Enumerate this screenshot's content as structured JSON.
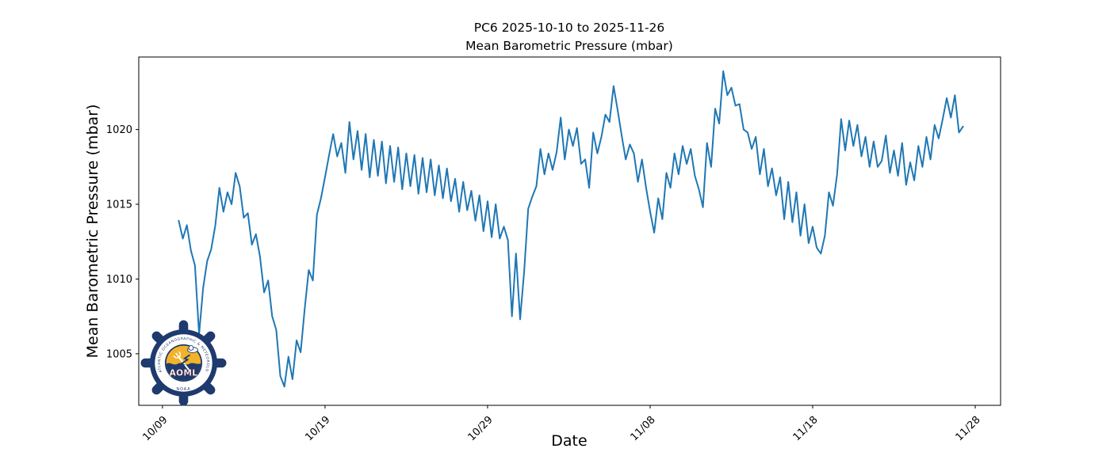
{
  "figure": {
    "title_line1": "PC6 2025-10-10 to 2025-11-26",
    "title_line2": "Mean Barometric Pressure (mbar)",
    "xlabel": "Date",
    "ylabel": "Mean Barometric Pressure (mbar)"
  },
  "chart_data": {
    "type": "line",
    "series_name": "Mean Barometric Pressure",
    "line_color": "#1f77b4",
    "title": "PC6 2025-10-10 to 2025-11-26 — Mean Barometric Pressure (mbar)",
    "xlabel": "Date",
    "ylabel": "Mean Barometric Pressure (mbar)",
    "grid": false,
    "x_start_date": "2025-10-10",
    "samples_per_day": 4,
    "x_tick_labels": [
      "10/09",
      "10/19",
      "10/29",
      "11/08",
      "11/18",
      "11/28"
    ],
    "x_tick_days": [
      -1,
      9,
      19,
      29,
      39,
      49
    ],
    "y_ticks": [
      1005,
      1010,
      1015,
      1020
    ],
    "xlim_days": [
      -2.46,
      50.56
    ],
    "ylim": [
      1001.55,
      1024.85
    ],
    "values": [
      1013.9,
      1012.7,
      1013.6,
      1011.9,
      1010.9,
      1006.3,
      1009.4,
      1011.2,
      1012.0,
      1013.6,
      1016.1,
      1014.5,
      1015.8,
      1015.0,
      1017.1,
      1016.2,
      1014.1,
      1014.4,
      1012.3,
      1013.0,
      1011.5,
      1009.1,
      1009.9,
      1007.5,
      1006.6,
      1003.5,
      1002.8,
      1004.8,
      1003.3,
      1005.9,
      1005.1,
      1008.0,
      1010.6,
      1009.9,
      1014.3,
      1015.4,
      1016.8,
      1018.3,
      1019.7,
      1018.2,
      1019.1,
      1017.1,
      1020.5,
      1018.0,
      1019.9,
      1017.3,
      1019.7,
      1016.8,
      1019.3,
      1016.9,
      1019.2,
      1016.4,
      1018.9,
      1016.5,
      1018.8,
      1016.0,
      1018.4,
      1016.2,
      1018.3,
      1015.7,
      1018.1,
      1015.8,
      1018.0,
      1015.6,
      1017.6,
      1015.4,
      1017.4,
      1015.2,
      1016.7,
      1014.5,
      1016.5,
      1014.6,
      1015.9,
      1013.9,
      1015.6,
      1013.2,
      1015.2,
      1012.8,
      1015.0,
      1012.7,
      1013.5,
      1012.6,
      1007.5,
      1011.7,
      1007.3,
      1010.5,
      1014.7,
      1015.5,
      1016.2,
      1018.7,
      1017.0,
      1018.4,
      1017.3,
      1018.5,
      1020.8,
      1018.0,
      1020.0,
      1018.9,
      1020.1,
      1017.7,
      1018.0,
      1016.1,
      1019.8,
      1018.4,
      1019.5,
      1021.0,
      1020.5,
      1022.9,
      1021.3,
      1019.6,
      1018.0,
      1019.0,
      1018.4,
      1016.5,
      1018.0,
      1016.1,
      1014.5,
      1013.1,
      1015.4,
      1014.0,
      1017.1,
      1016.1,
      1018.4,
      1017.0,
      1018.9,
      1017.7,
      1018.7,
      1016.9,
      1016.0,
      1014.8,
      1019.1,
      1017.5,
      1021.4,
      1020.4,
      1023.9,
      1022.3,
      1022.8,
      1021.6,
      1021.7,
      1020.0,
      1019.8,
      1018.7,
      1019.5,
      1017.0,
      1018.7,
      1016.2,
      1017.4,
      1015.6,
      1016.8,
      1014.0,
      1016.5,
      1013.8,
      1015.8,
      1012.9,
      1015.0,
      1012.4,
      1013.5,
      1012.1,
      1011.7,
      1012.9,
      1015.8,
      1014.9,
      1017.0,
      1020.7,
      1018.6,
      1020.6,
      1018.9,
      1020.3,
      1018.2,
      1019.5,
      1017.5,
      1019.2,
      1017.5,
      1017.9,
      1019.6,
      1017.1,
      1018.6,
      1016.9,
      1019.1,
      1016.3,
      1017.8,
      1016.6,
      1018.9,
      1017.5,
      1019.5,
      1018.0,
      1020.3,
      1019.4,
      1020.7,
      1022.1,
      1020.8,
      1022.3,
      1019.8,
      1020.2
    ]
  },
  "logo": {
    "ring_text": "ATLANTIC OCEANOGRAPHIC & METEOROLOGICAL LABORATORY",
    "bottom_text": "NOAA",
    "center_text": "AOML",
    "navy": "#1e3a6e",
    "gold": "#f2b229",
    "white": "#ffffff"
  }
}
